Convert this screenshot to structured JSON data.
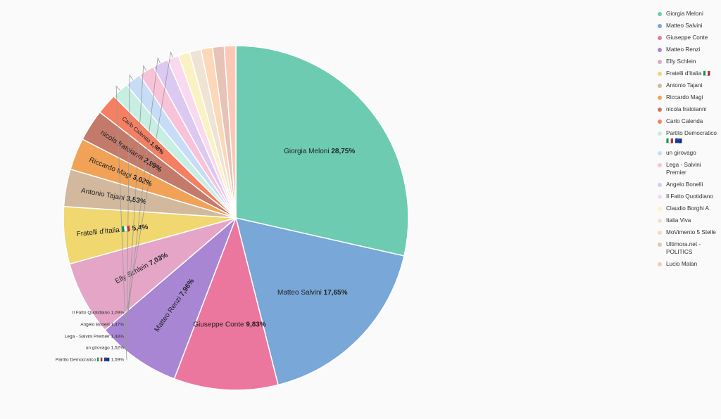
{
  "chart_data": {
    "type": "pie",
    "series": [
      {
        "name": "Giorgia Meloni",
        "value": 28.75,
        "label": "28,75%",
        "color": "#6dcbb1"
      },
      {
        "name": "Matteo Salvini",
        "value": 17.65,
        "label": "17,65%",
        "color": "#78a7d8"
      },
      {
        "name": "Giuseppe Conte",
        "value": 9.83,
        "label": "9,83%",
        "color": "#ec779e"
      },
      {
        "name": "Matteo Renzi",
        "value": 7.96,
        "label": "7,96%",
        "color": "#a886d4"
      },
      {
        "name": "Elly Schlein",
        "value": 7.03,
        "label": "7,03%",
        "color": "#e4a5c7"
      },
      {
        "name": "Fratelli d'Italia 🇮🇹",
        "value": 5.4,
        "label": "5,4%",
        "color": "#f0d76f"
      },
      {
        "name": "Antonio Tajani",
        "value": 3.53,
        "label": "3,53%",
        "color": "#d2b99d"
      },
      {
        "name": "Riccardo Magi",
        "value": 3.02,
        "label": "3,02%",
        "color": "#f2a257"
      },
      {
        "name": "nicola fratoianni",
        "value": 2.99,
        "label": "2,99%",
        "color": "#c47a6a"
      },
      {
        "name": "Carlo Calenda",
        "value": 1.98,
        "label": "1,98%",
        "color": "#f47f62"
      },
      {
        "name": "Partito Democratico 🇮🇹 🇪🇺",
        "value": 1.59,
        "label": "1,59%",
        "color": "#c6eee2"
      },
      {
        "name": "un girovago",
        "value": 1.52,
        "label": "1,52%",
        "color": "#c7dcf6"
      },
      {
        "name": "Lega - Salvini Premier",
        "value": 1.48,
        "label": "1,48%",
        "color": "#f8c3d8"
      },
      {
        "name": "Angelo Bonelli",
        "value": 1.47,
        "label": "1,47%",
        "color": "#dcc9f1"
      },
      {
        "name": "Il Fatto Quotidiano",
        "value": 1.09,
        "label": "1,09%",
        "color": "#f9d9ee"
      },
      {
        "name": "Claudio Borghi A.",
        "value": 1.09,
        "label": "",
        "color": "#faf2c3"
      },
      {
        "name": "Italia Viva",
        "value": 1.09,
        "label": "",
        "color": "#efe3d4"
      },
      {
        "name": "MoVimento 5 Stelle",
        "value": 1.09,
        "label": "",
        "color": "#fcd8b9"
      },
      {
        "name": "Ultimora.net - POLITICS",
        "value": 1.09,
        "label": "",
        "color": "#e7c2b6"
      },
      {
        "name": "Lucio Malan",
        "value": 1.09,
        "label": "",
        "color": "#fbc8b6"
      }
    ],
    "legend_position": "right"
  }
}
